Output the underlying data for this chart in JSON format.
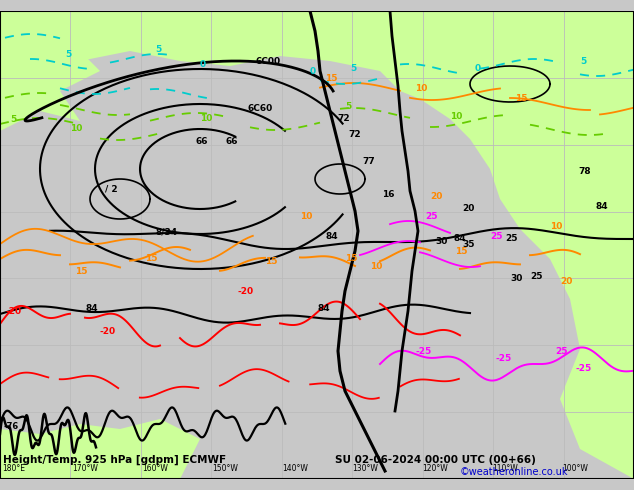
{
  "title_left": "Height/Temp. 925 hPa [gdpm] ECMWF",
  "title_right": "SU 02-06-2024 00:00 UTC (00+66)",
  "credit": "©weatheronline.co.uk",
  "bg_gray": "#c8c8c8",
  "green_land": "#ccff99",
  "green_land2": "#aae066",
  "contour_black": "#000000",
  "orange": "#ff8800",
  "red": "#ff0000",
  "cyan": "#00cccc",
  "lime_green": "#66cc00",
  "magenta": "#ff00ff",
  "grid_color": "#bbbbbb",
  "title_color": "#000000",
  "credit_color": "#0000cc",
  "figsize": [
    6.34,
    4.9
  ],
  "dpi": 100
}
